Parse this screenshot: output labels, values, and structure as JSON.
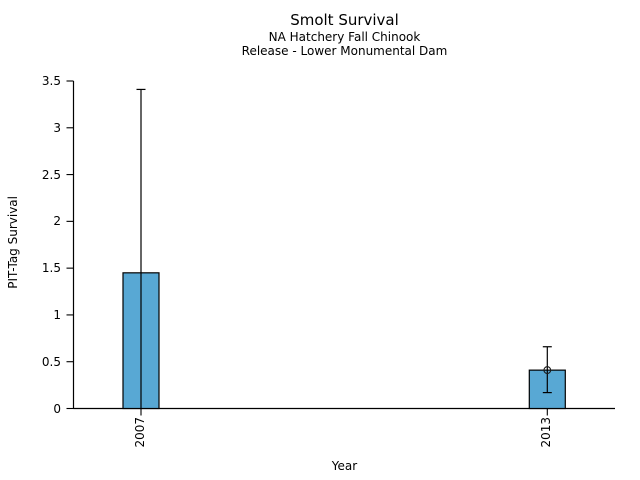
{
  "chart_data": {
    "type": "bar",
    "title": "Smolt Survival",
    "subtitle_lines": [
      "NA Hatchery Fall Chinook",
      "Release - Lower Monumental Dam"
    ],
    "xlabel": "Year",
    "ylabel": "PIT-Tag Survival",
    "categories": [
      "2007",
      "2013"
    ],
    "series": [
      {
        "name": "PIT-Tag Survival",
        "values": [
          1.45,
          0.41
        ],
        "ci_low": [
          0,
          0.17
        ],
        "ci_high": [
          3.41,
          0.66
        ],
        "point_marker_shown": [
          false,
          true
        ]
      }
    ],
    "ylim": [
      0,
      3.5
    ],
    "y_tick_labels": [
      "0",
      "0.5",
      "1",
      "1.5",
      "2",
      "2.5",
      "3",
      "3.5"
    ],
    "grid": false,
    "legend_shown": false,
    "colors": {
      "bar_fill": "#58a8d4",
      "bar_edge": "#000000",
      "error_bar": "#000000",
      "marker_edge": "#1a1a1a",
      "axis": "#000000",
      "text": "#000000",
      "background": "#ffffff"
    }
  }
}
